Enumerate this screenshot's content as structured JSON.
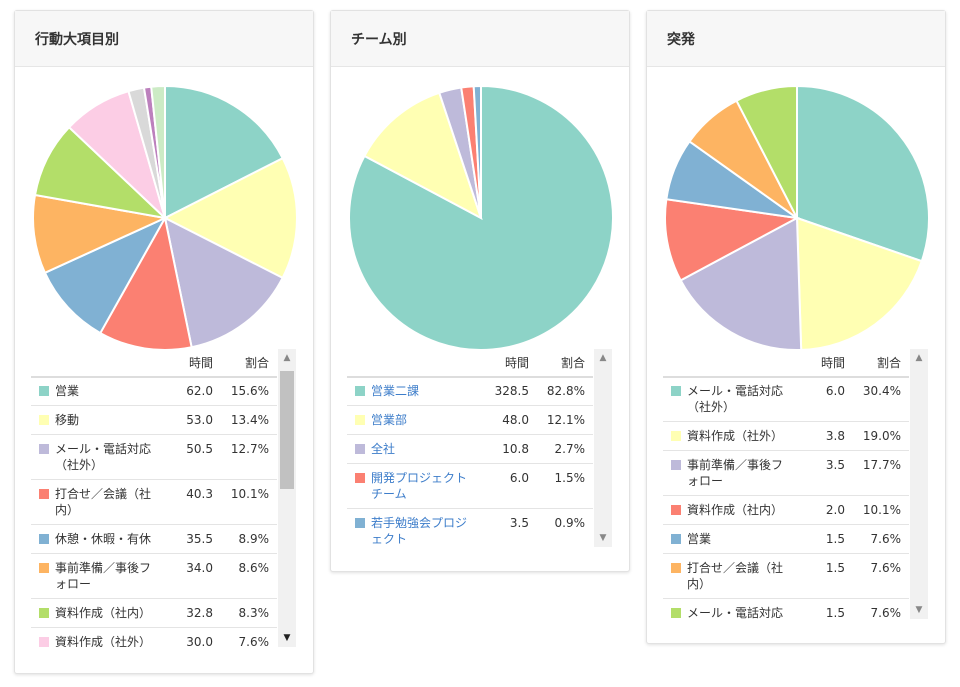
{
  "headers": {
    "time": "時間",
    "ratio": "割合"
  },
  "panels": [
    {
      "title": "行動大項目別",
      "rows": [
        {
          "label": "営業",
          "time": "62.0",
          "ratio": "15.6%",
          "color": "#8dd3c7"
        },
        {
          "label": "移動",
          "time": "53.0",
          "ratio": "13.4%",
          "color": "#ffffb3"
        },
        {
          "label": "メール・電話対応（社外）",
          "time": "50.5",
          "ratio": "12.7%",
          "color": "#bebada"
        },
        {
          "label": "打合せ／会議（社内）",
          "time": "40.3",
          "ratio": "10.1%",
          "color": "#fb8072"
        },
        {
          "label": "休憩・休暇・有休",
          "time": "35.5",
          "ratio": "8.9%",
          "color": "#80b1d3"
        },
        {
          "label": "事前準備／事後フォロー",
          "time": "34.0",
          "ratio": "8.6%",
          "color": "#fdb462"
        },
        {
          "label": "資料作成（社内）",
          "time": "32.8",
          "ratio": "8.3%",
          "color": "#b3de69"
        },
        {
          "label": "資料作成（社外）",
          "time": "30.0",
          "ratio": "7.6%",
          "color": "#fccde5"
        }
      ],
      "extra_slices": [
        {
          "value": 6.8,
          "color": "#d9d9d9"
        },
        {
          "value": 3.1,
          "color": "#bc80bd"
        },
        {
          "value": 5.9,
          "color": "#ccebc5"
        }
      ]
    },
    {
      "title": "チーム別",
      "rows": [
        {
          "label": "営業二課",
          "time": "328.5",
          "ratio": "82.8%",
          "color": "#8dd3c7"
        },
        {
          "label": "営業部",
          "time": "48.0",
          "ratio": "12.1%",
          "color": "#ffffb3"
        },
        {
          "label": "全社",
          "time": "10.8",
          "ratio": "2.7%",
          "color": "#bebada"
        },
        {
          "label": "開発プロジェクトチーム",
          "time": "6.0",
          "ratio": "1.5%",
          "color": "#fb8072"
        },
        {
          "label": "若手勉強会プロジェクト",
          "time": "3.5",
          "ratio": "0.9%",
          "color": "#80b1d3"
        }
      ],
      "extra_slices": []
    },
    {
      "title": "突発",
      "rows": [
        {
          "label": "メール・電話対応（社外）",
          "time": "6.0",
          "ratio": "30.4%",
          "color": "#8dd3c7"
        },
        {
          "label": "資料作成（社外）",
          "time": "3.8",
          "ratio": "19.0%",
          "color": "#ffffb3"
        },
        {
          "label": "事前準備／事後フォロー",
          "time": "3.5",
          "ratio": "17.7%",
          "color": "#bebada"
        },
        {
          "label": "資料作成（社内）",
          "time": "2.0",
          "ratio": "10.1%",
          "color": "#fb8072"
        },
        {
          "label": "営業",
          "time": "1.5",
          "ratio": "7.6%",
          "color": "#80b1d3"
        },
        {
          "label": "打合せ／会議（社内）",
          "time": "1.5",
          "ratio": "7.6%",
          "color": "#fdb462"
        },
        {
          "label": "メール・電話対応（社外）",
          "time": "1.5",
          "ratio": "7.6%",
          "color": "#b3de69"
        }
      ],
      "extra_slices": []
    }
  ]
}
